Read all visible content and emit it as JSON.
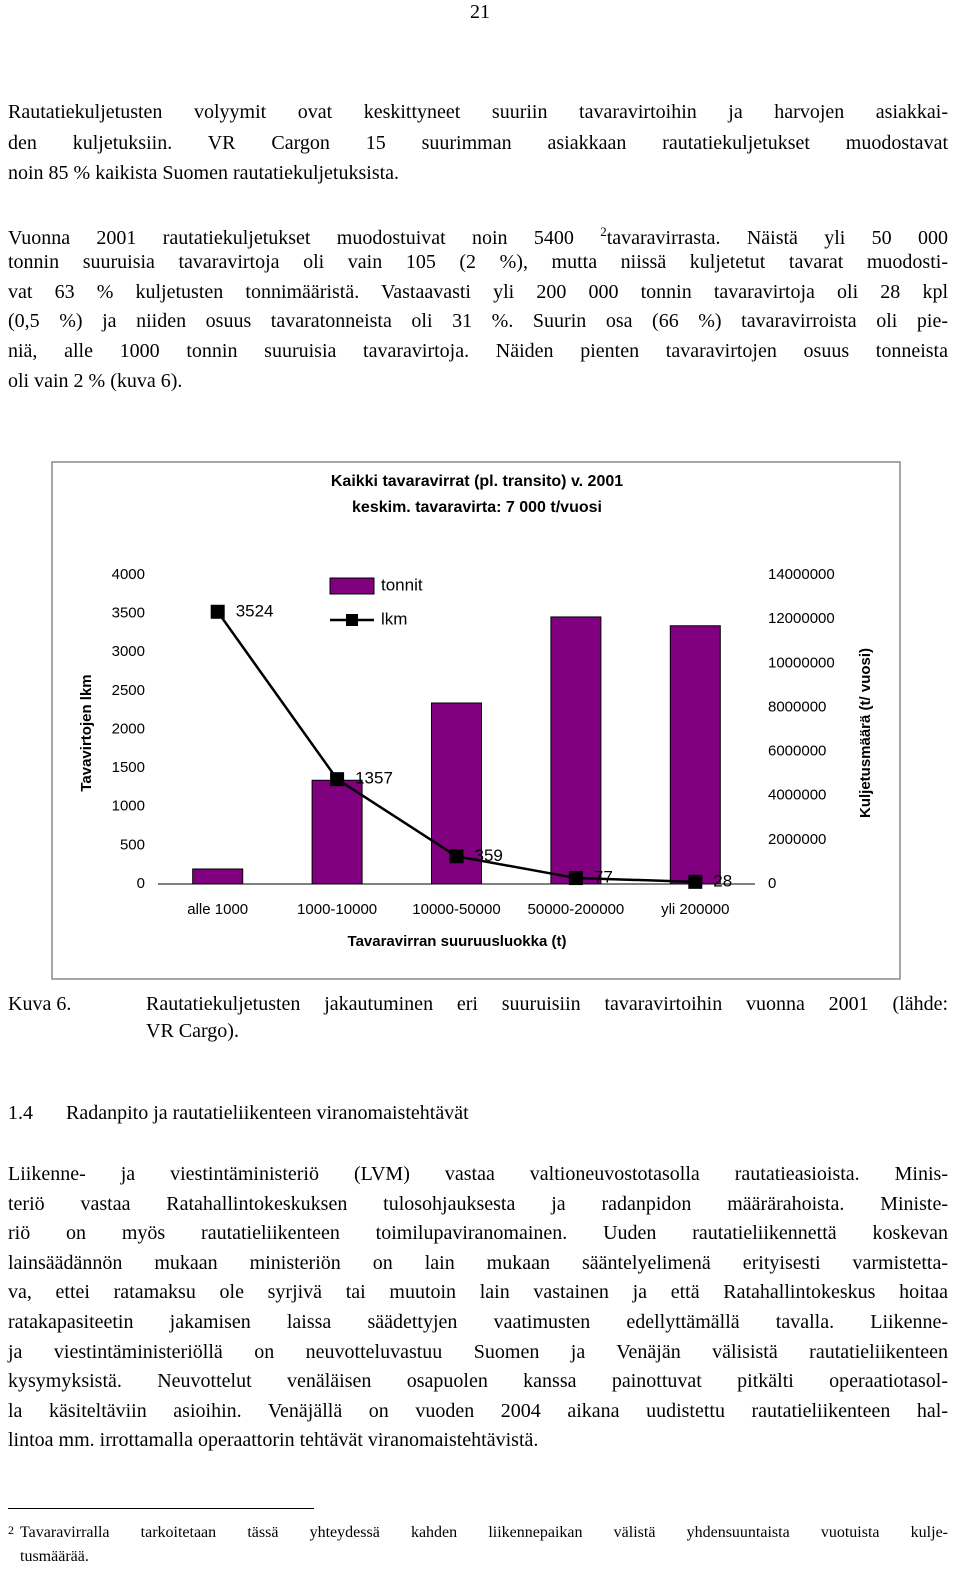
{
  "page_number": "21",
  "paragraph_1": [
    "Rautatiekuljetusten volyymit ovat keskittyneet suuriin tavaravirtoihin ja harvojen asiakkai-",
    "den kuljetuksiin. VR Cargon 15 suurimman asiakkaan rautatiekuljetukset muodostavat",
    "noin 85 % kaikista Suomen rautatiekuljetuksista."
  ],
  "paragraph_2": [
    {
      "text": "Vuonna 2001 rautatiekuljetukset muodostuivat noin 5400 ",
      "sup": "2",
      "tail": "tavaravirrasta. Näistä yli 50 000"
    },
    "tonnin suuruisia tavaravirtoja oli vain 105 (2 %), mutta niissä kuljetetut tavarat muodosti-",
    "vat 63 % kuljetusten tonnimääristä. Vastaavasti yli 200 000 tonnin tavaravirtoja oli 28 kpl",
    "(0,5 %) ja niiden osuus tavaratonneista oli 31 %. Suurin osa (66 %) tavaravirroista oli pie-",
    "niä, alle 1000 tonnin suuruisia tavaravirtoja. Näiden pienten tavaravirtojen osuus tonneista",
    "oli vain 2 % (kuva 6)."
  ],
  "chart_data": {
    "type": "bar",
    "title": [
      "Kaikki tavaravirrat (pl. transito) v. 2001",
      "keskim. tavaravirta: 7 000 t/vuosi"
    ],
    "x_label": "Tavaravirran suuruusluokka (t)",
    "y_label": "Tavavirtojen lkm",
    "y2_label": "Kuljetusmäärä (t/ vuosi)",
    "categories": [
      "alle 1000",
      "1000-10000",
      "10000-50000",
      "50000-200000",
      "yli 200000"
    ],
    "series": [
      {
        "name": "tonnit",
        "type": "bar",
        "axis": "y2",
        "color": "#800080",
        "values": [
          680000,
          4700000,
          8200000,
          12100000,
          11700000
        ]
      },
      {
        "name": "lkm",
        "type": "line",
        "axis": "y",
        "color": "#000000",
        "values": [
          3524,
          1357,
          359,
          77,
          28
        ]
      }
    ],
    "ylim": [
      0,
      4000
    ],
    "yticks": [
      0,
      500,
      1000,
      1500,
      2000,
      2500,
      3000,
      3500,
      4000
    ],
    "y2lim": [
      0,
      14000000
    ],
    "y2ticks": [
      0,
      2000000,
      4000000,
      6000000,
      8000000,
      10000000,
      12000000,
      14000000
    ],
    "grid": false,
    "legend": "top"
  },
  "caption": {
    "label": "Kuva 6.",
    "lines": [
      "Rautatiekuljetusten jakautuminen eri suuruisiin tavaravirtoihin vuonna 2001 (lähde:",
      "VR Cargo)."
    ]
  },
  "section": {
    "number": "1.4",
    "title": "Radanpito ja rautatieliikenteen viranomaistehtävät"
  },
  "paragraph_3": [
    "Liikenne- ja viestintäministeriö (LVM) vastaa valtioneuvostotasolla rautatieasioista. Minis-",
    "teriö vastaa Ratahallintokeskuksen tulosohjauksesta ja radanpidon määrärahoista. Ministe-",
    "riö on myös rautatieliikenteen toimilupaviranomainen. Uuden rautatieliikennettä koskevan",
    "lainsäädännön mukaan ministeriön on lain mukaan sääntelyelimenä erityisesti varmistetta-",
    "va, ettei ratamaksu ole syrjivä tai muutoin lain vastainen ja että Ratahallintokeskus hoitaa",
    "ratakapasiteetin jakamisen laissa säädettyjen vaatimusten edellyttämällä tavalla. Liikenne-",
    "ja viestintäministeriöllä on neuvotteluvastuu Suomen ja Venäjän välisistä rautatieliikenteen",
    "kysymyksistä. Neuvottelut venäläisen osapuolen kanssa painottuvat pitkälti operaatiotasol-",
    "la käsiteltäviin asioihin. Venäjällä on vuoden 2004 aikana uudistettu rautatieliikenteen hal-",
    "lintoa mm. irrottamalla operaattorin tehtävät viranomaistehtävistä."
  ],
  "footnote": {
    "marker": "2",
    "lines": [
      "Tavaravirralla tarkoitetaan tässä yhteydessä kahden liikennepaikan välistä yhdensuuntaista vuotuista kulje-",
      "tusmäärää."
    ]
  }
}
